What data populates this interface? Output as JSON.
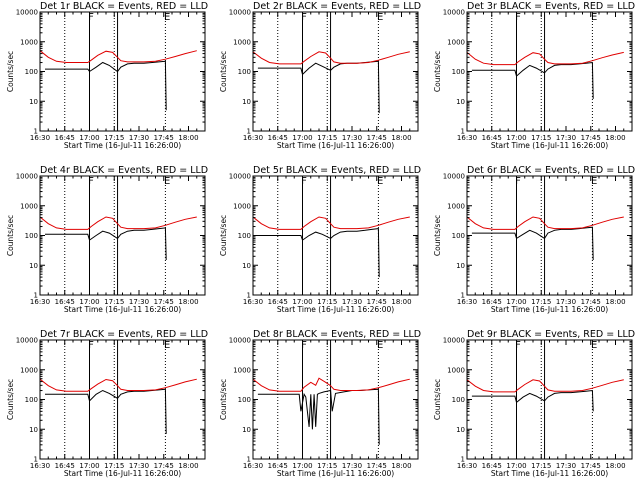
{
  "figure": {
    "layout": "3x3",
    "x_axis": {
      "tick_labels": [
        "16:30",
        "16:45",
        "17:00",
        "17:15",
        "17:30",
        "17:45",
        "18:00"
      ],
      "tick_minutes": [
        0,
        15,
        30,
        45,
        60,
        75,
        90
      ],
      "range_minutes": [
        0,
        100
      ],
      "label": "Start Time (16-Jul-11 16:26:00)"
    },
    "y_axis": {
      "scale": "log",
      "range": [
        1,
        10000
      ],
      "label": "Counts/sec",
      "tick_values": [
        1,
        10,
        100,
        1000,
        10000
      ],
      "tick_labels": [
        "1",
        "10",
        "100",
        "1000",
        "10000"
      ]
    },
    "series_colors": {
      "events": "#000000",
      "lld": "#e00000"
    },
    "flag_labels": {
      "flare": "F",
      "end": "E"
    },
    "flag_minutes": {
      "flare": 31,
      "end": 77
    },
    "dotted_minutes": [
      15,
      45,
      76
    ],
    "solid_minutes": [
      30,
      47
    ]
  },
  "chart_data": [
    {
      "type": "line",
      "title": "Det 1r BLACK = Events, RED = LLD",
      "series": [
        {
          "color": "black",
          "x": [
            3,
            16,
            23,
            29,
            30,
            34,
            38,
            42,
            47,
            49,
            53,
            57,
            63,
            68,
            72,
            76,
            76.5
          ],
          "y": [
            120,
            120,
            120,
            120,
            100,
            140,
            200,
            160,
            100,
            140,
            180,
            190,
            190,
            200,
            210,
            220,
            5
          ]
        },
        {
          "color": "red",
          "x": [
            0,
            5,
            10,
            16,
            24,
            29,
            31,
            35,
            40,
            44,
            47,
            49,
            53,
            57,
            63,
            70,
            76,
            82,
            88,
            95
          ],
          "y": [
            500,
            300,
            220,
            200,
            200,
            200,
            240,
            350,
            480,
            440,
            300,
            230,
            210,
            210,
            210,
            220,
            260,
            320,
            400,
            500
          ]
        }
      ]
    },
    {
      "type": "line",
      "title": "Det 2r BLACK = Events, RED = LLD",
      "series": [
        {
          "color": "black",
          "x": [
            3,
            16,
            23,
            29,
            30,
            34,
            38,
            42,
            47,
            49,
            53,
            57,
            63,
            68,
            72,
            76,
            76.5
          ],
          "y": [
            130,
            130,
            130,
            130,
            80,
            130,
            190,
            150,
            110,
            140,
            180,
            190,
            190,
            200,
            210,
            220,
            4
          ]
        },
        {
          "color": "red",
          "x": [
            0,
            5,
            10,
            16,
            24,
            29,
            31,
            35,
            40,
            44,
            47,
            49,
            53,
            57,
            63,
            70,
            76,
            82,
            88,
            95
          ],
          "y": [
            460,
            280,
            200,
            180,
            180,
            180,
            220,
            320,
            460,
            420,
            280,
            210,
            190,
            190,
            190,
            200,
            240,
            300,
            380,
            460
          ]
        }
      ]
    },
    {
      "type": "line",
      "title": "Det 3r BLACK = Events, RED = LLD",
      "series": [
        {
          "color": "black",
          "x": [
            3,
            16,
            23,
            29,
            30,
            34,
            38,
            42,
            47,
            49,
            53,
            57,
            63,
            68,
            72,
            76,
            76.5
          ],
          "y": [
            110,
            110,
            110,
            110,
            70,
            110,
            160,
            130,
            90,
            120,
            160,
            170,
            170,
            180,
            190,
            200,
            12
          ]
        },
        {
          "color": "red",
          "x": [
            0,
            5,
            10,
            16,
            24,
            29,
            31,
            35,
            40,
            44,
            47,
            49,
            53,
            57,
            63,
            70,
            76,
            82,
            88,
            95
          ],
          "y": [
            440,
            260,
            190,
            170,
            170,
            170,
            210,
            300,
            430,
            390,
            260,
            200,
            180,
            180,
            180,
            190,
            230,
            290,
            360,
            440
          ]
        }
      ]
    },
    {
      "type": "line",
      "title": "Det 4r BLACK = Events, RED = LLD",
      "series": [
        {
          "color": "black",
          "x": [
            3,
            16,
            23,
            29,
            30,
            34,
            38,
            42,
            47,
            49,
            53,
            57,
            63,
            68,
            72,
            76,
            76.5
          ],
          "y": [
            110,
            110,
            110,
            110,
            70,
            100,
            140,
            120,
            80,
            110,
            140,
            150,
            150,
            160,
            170,
            180,
            15
          ]
        },
        {
          "color": "red",
          "x": [
            0,
            5,
            10,
            16,
            24,
            29,
            31,
            35,
            40,
            44,
            47,
            49,
            53,
            57,
            63,
            70,
            76,
            82,
            88,
            95
          ],
          "y": [
            420,
            250,
            180,
            160,
            160,
            160,
            200,
            290,
            420,
            380,
            250,
            190,
            170,
            170,
            170,
            180,
            220,
            280,
            350,
            420
          ]
        }
      ]
    },
    {
      "type": "line",
      "title": "Det 5r BLACK = Events, RED = LLD",
      "series": [
        {
          "color": "black",
          "x": [
            3,
            16,
            23,
            29,
            30,
            34,
            38,
            42,
            47,
            49,
            53,
            57,
            63,
            68,
            72,
            76,
            76.5
          ],
          "y": [
            100,
            100,
            100,
            100,
            70,
            100,
            130,
            110,
            80,
            100,
            130,
            140,
            140,
            150,
            160,
            170,
            4
          ]
        },
        {
          "color": "red",
          "x": [
            0,
            5,
            10,
            16,
            24,
            29,
            31,
            35,
            40,
            44,
            47,
            49,
            53,
            57,
            63,
            70,
            76,
            82,
            88,
            95
          ],
          "y": [
            420,
            250,
            180,
            160,
            160,
            160,
            200,
            290,
            420,
            380,
            250,
            190,
            170,
            170,
            170,
            180,
            220,
            280,
            350,
            420
          ]
        }
      ]
    },
    {
      "type": "line",
      "title": "Det 6r BLACK = Events, RED = LLD",
      "series": [
        {
          "color": "black",
          "x": [
            3,
            16,
            23,
            29,
            30,
            34,
            38,
            42,
            47,
            49,
            53,
            57,
            63,
            68,
            72,
            76,
            76.5
          ],
          "y": [
            120,
            120,
            120,
            120,
            80,
            110,
            150,
            120,
            80,
            120,
            150,
            160,
            160,
            170,
            180,
            190,
            15
          ]
        },
        {
          "color": "red",
          "x": [
            0,
            5,
            10,
            16,
            24,
            29,
            31,
            35,
            40,
            44,
            47,
            49,
            53,
            57,
            63,
            70,
            76,
            82,
            88,
            95
          ],
          "y": [
            420,
            250,
            180,
            160,
            160,
            160,
            200,
            290,
            420,
            380,
            250,
            190,
            170,
            170,
            170,
            180,
            220,
            280,
            350,
            420
          ]
        }
      ]
    },
    {
      "type": "line",
      "title": "Det 7r BLACK = Events, RED = LLD",
      "series": [
        {
          "color": "black",
          "x": [
            3,
            16,
            23,
            29,
            30,
            34,
            38,
            42,
            47,
            49,
            53,
            57,
            63,
            68,
            72,
            76,
            76.5
          ],
          "y": [
            150,
            150,
            150,
            150,
            90,
            150,
            200,
            160,
            110,
            150,
            180,
            190,
            190,
            200,
            210,
            220,
            7
          ]
        },
        {
          "color": "red",
          "x": [
            0,
            5,
            10,
            16,
            24,
            29,
            31,
            35,
            40,
            44,
            47,
            49,
            53,
            57,
            63,
            70,
            76,
            82,
            88,
            95
          ],
          "y": [
            480,
            290,
            210,
            190,
            190,
            190,
            230,
            330,
            470,
            430,
            290,
            220,
            200,
            200,
            200,
            210,
            250,
            310,
            390,
            480
          ]
        }
      ]
    },
    {
      "type": "line",
      "title": "Det 8r BLACK = Events, RED = LLD",
      "series": [
        {
          "color": "black",
          "x": [
            3,
            16,
            23,
            28,
            29,
            31,
            32,
            34,
            35,
            36,
            37,
            38,
            39,
            40,
            43,
            47,
            48,
            50,
            55,
            60,
            65,
            70,
            76,
            76.5
          ],
          "y": [
            150,
            150,
            150,
            150,
            40,
            150,
            120,
            12,
            150,
            10,
            150,
            12,
            150,
            160,
            180,
            200,
            40,
            160,
            180,
            200,
            200,
            210,
            220,
            3
          ]
        },
        {
          "color": "red",
          "x": [
            0,
            5,
            10,
            16,
            24,
            29,
            31,
            35,
            38,
            40,
            44,
            47,
            49,
            53,
            57,
            63,
            70,
            76,
            82,
            88,
            95
          ],
          "y": [
            480,
            290,
            210,
            190,
            190,
            190,
            260,
            380,
            300,
            520,
            380,
            290,
            220,
            200,
            200,
            200,
            210,
            250,
            310,
            390,
            480
          ]
        }
      ]
    },
    {
      "type": "line",
      "title": "Det 9r BLACK = Events, RED = LLD",
      "series": [
        {
          "color": "black",
          "x": [
            3,
            16,
            23,
            29,
            30,
            34,
            38,
            42,
            47,
            49,
            53,
            57,
            63,
            68,
            72,
            76,
            76.5
          ],
          "y": [
            130,
            130,
            130,
            130,
            80,
            120,
            160,
            130,
            90,
            120,
            160,
            170,
            170,
            180,
            190,
            200,
            40
          ]
        },
        {
          "color": "red",
          "x": [
            0,
            5,
            10,
            16,
            24,
            29,
            31,
            35,
            40,
            44,
            47,
            49,
            53,
            57,
            63,
            70,
            76,
            82,
            88,
            95
          ],
          "y": [
            460,
            280,
            200,
            180,
            180,
            180,
            220,
            320,
            460,
            420,
            280,
            210,
            190,
            190,
            190,
            200,
            240,
            300,
            380,
            460
          ]
        }
      ]
    }
  ]
}
